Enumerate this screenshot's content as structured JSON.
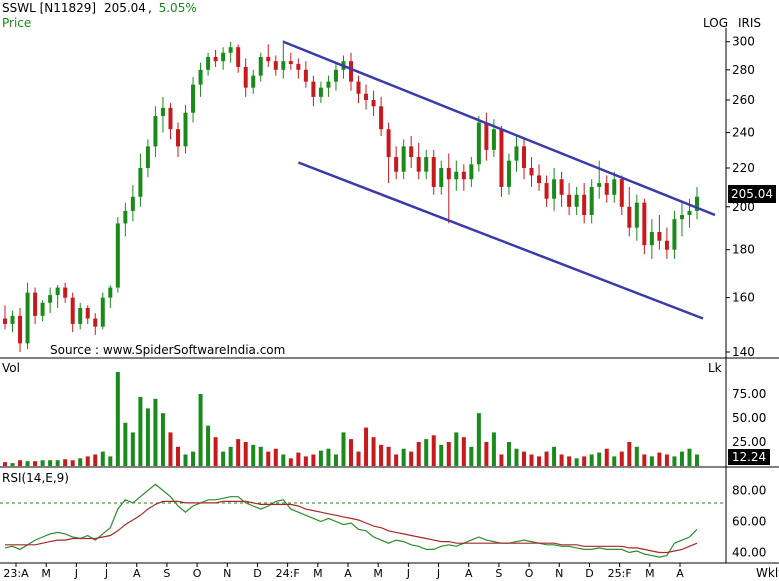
{
  "header": {
    "symbol": "SSWL [N11829]",
    "price": "205.04",
    "change": "5.05%",
    "price_label": "Price",
    "log_label": "LOG",
    "iris_label": "IRIS",
    "source": "Source : www.SpiderSoftwareIndia.com",
    "vol_label": "Vol",
    "vol_unit": "Lk",
    "rsi_label": "RSI(14,E,9)",
    "period_label": "Wkly",
    "price_badge": "205.04",
    "vol_badge": "12.24"
  },
  "colors": {
    "up": "#1a8a1a",
    "down": "#c8191c",
    "channel": "#3a3aa8",
    "rsi_line": "#2e8b2e",
    "rsi_signal": "#a52a2a",
    "badge": "#000000"
  },
  "chart_data": [
    {
      "type": "candlestick",
      "title": "SSWL [N11829]",
      "scale": "log",
      "ylim": [
        140,
        305
      ],
      "y_ticks": [
        140,
        160,
        180,
        200,
        220,
        240,
        260,
        280,
        300
      ],
      "x_ticks": [
        "23:A",
        "M",
        "J",
        "J",
        "A",
        "S",
        "O",
        "N",
        "D",
        "24:F",
        "M",
        "A",
        "M",
        "J",
        "J",
        "A",
        "S",
        "O",
        "N",
        "D",
        "25:F",
        "M",
        "A"
      ],
      "last_price": 205.04,
      "channel": {
        "upper": [
          {
            "x": 0,
            "y": 300
          },
          {
            "x": 89,
            "y": 198
          }
        ],
        "lower": [
          {
            "x": 0,
            "y": 223
          },
          {
            "x": 60,
            "y": 152
          }
        ],
        "upper_start_index": 37,
        "lower_start_index": 39
      },
      "series": [
        {
          "ohlc": [
            [
              152,
              157,
              148,
              150
            ],
            [
              150,
              155,
              147,
              153
            ],
            [
              153,
              156,
              140,
              143
            ],
            [
              143,
              166,
              141,
              162
            ],
            [
              162,
              164,
              150,
              153
            ],
            [
              153,
              159,
              151,
              158
            ],
            [
              158,
              164,
              154,
              161
            ],
            [
              161,
              165,
              156,
              164
            ],
            [
              164,
              166,
              158,
              160
            ],
            [
              160,
              162,
              147,
              150
            ],
            [
              150,
              158,
              148,
              156
            ],
            [
              156,
              157,
              150,
              152
            ],
            [
              152,
              154,
              146,
              149
            ],
            [
              149,
              162,
              148,
              160
            ],
            [
              160,
              165,
              156,
              164
            ],
            [
              164,
              195,
              162,
              192
            ],
            [
              192,
              202,
              186,
              198
            ],
            [
              198,
              211,
              193,
              205
            ],
            [
              205,
              228,
              200,
              220
            ],
            [
              220,
              236,
              215,
              232
            ],
            [
              232,
              256,
              226,
              250
            ],
            [
              250,
              262,
              240,
              255
            ],
            [
              255,
              258,
              236,
              242
            ],
            [
              242,
              246,
              226,
              232
            ],
            [
              232,
              257,
              228,
              252
            ],
            [
              252,
              275,
              246,
              270
            ],
            [
              270,
              285,
              262,
              280
            ],
            [
              280,
              292,
              276,
              289
            ],
            [
              289,
              294,
              282,
              286
            ],
            [
              286,
              296,
              280,
              292
            ],
            [
              292,
              300,
              285,
              296
            ],
            [
              296,
              298,
              278,
              282
            ],
            [
              282,
              288,
              262,
              268
            ],
            [
              268,
              280,
              264,
              276
            ],
            [
              276,
              292,
              272,
              289
            ],
            [
              289,
              298,
              282,
              286
            ],
            [
              286,
              290,
              276,
              280
            ],
            [
              280,
              301,
              274,
              286
            ],
            [
              286,
              292,
              280,
              284
            ],
            [
              284,
              288,
              274,
              280
            ],
            [
              280,
              286,
              268,
              272
            ],
            [
              272,
              276,
              256,
              262
            ],
            [
              262,
              272,
              258,
              268
            ],
            [
              268,
              276,
              262,
              272
            ],
            [
              272,
              284,
              266,
              280
            ],
            [
              280,
              290,
              274,
              286
            ],
            [
              286,
              292,
              266,
              272
            ],
            [
              272,
              276,
              258,
              264
            ],
            [
              264,
              270,
              254,
              260
            ],
            [
              260,
              266,
              250,
              256
            ],
            [
              256,
              262,
              238,
              242
            ],
            [
              242,
              246,
              212,
              226
            ],
            [
              226,
              232,
              214,
              218
            ],
            [
              218,
              236,
              214,
              232
            ],
            [
              232,
              238,
              220,
              226
            ],
            [
              226,
              234,
              214,
              218
            ],
            [
              218,
              230,
              214,
              226
            ],
            [
              226,
              230,
              206,
              210
            ],
            [
              210,
              224,
              206,
              220
            ],
            [
              220,
              228,
              192,
              214
            ],
            [
              214,
              224,
              208,
              218
            ],
            [
              218,
              222,
              208,
              214
            ],
            [
              214,
              226,
              210,
              222
            ],
            [
              222,
              250,
              218,
              246
            ],
            [
              246,
              252,
              224,
              230
            ],
            [
              230,
              248,
              226,
              242
            ],
            [
              242,
              244,
              205,
              210
            ],
            [
              210,
              228,
              206,
              224
            ],
            [
              224,
              238,
              218,
              232
            ],
            [
              232,
              236,
              214,
              220
            ],
            [
              220,
              226,
              210,
              216
            ],
            [
              216,
              222,
              208,
              212
            ],
            [
              212,
              216,
              200,
              204
            ],
            [
              204,
              220,
              198,
              214
            ],
            [
              214,
              218,
              200,
              206
            ],
            [
              206,
              212,
              196,
              200
            ],
            [
              200,
              210,
              196,
              206
            ],
            [
              206,
              212,
              192,
              196
            ],
            [
              196,
              214,
              192,
              210
            ],
            [
              210,
              224,
              204,
              212
            ],
            [
              212,
              216,
              202,
              206
            ],
            [
              206,
              218,
              202,
              214
            ],
            [
              214,
              216,
              196,
              200
            ],
            [
              200,
              210,
              186,
              190
            ],
            [
              190,
              206,
              184,
              202
            ],
            [
              202,
              204,
              178,
              182
            ],
            [
              182,
              194,
              176,
              188
            ],
            [
              188,
              196,
              180,
              184
            ],
            [
              184,
              190,
              176,
              180
            ],
            [
              180,
              198,
              176,
              194
            ],
            [
              194,
              202,
              186,
              196
            ],
            [
              196,
              204,
              190,
              198
            ],
            [
              198,
              210,
              194,
              205
            ]
          ]
        }
      ]
    },
    {
      "type": "bar",
      "title": "Vol",
      "unit": "Lk",
      "ylim": [
        0,
        100
      ],
      "y_ticks": [
        25,
        50,
        75
      ],
      "last_value": 12.24,
      "series": [
        {
          "values": [
            4,
            3,
            6,
            5,
            5,
            6,
            6,
            6,
            7,
            6,
            8,
            10,
            12,
            15,
            10,
            98,
            45,
            35,
            72,
            60,
            70,
            55,
            35,
            20,
            12,
            15,
            75,
            42,
            30,
            15,
            20,
            28,
            25,
            22,
            20,
            15,
            18,
            12,
            8,
            14,
            10,
            12,
            16,
            18,
            12,
            35,
            28,
            15,
            40,
            30,
            22,
            20,
            12,
            18,
            15,
            25,
            28,
            32,
            22,
            25,
            35,
            30,
            20,
            55,
            25,
            35,
            12,
            25,
            18,
            15,
            12,
            10,
            15,
            20,
            12,
            10,
            8,
            10,
            12,
            14,
            18,
            10,
            15,
            25,
            20,
            12,
            10,
            14,
            12,
            10,
            15,
            18,
            12
          ]
        }
      ]
    },
    {
      "type": "line",
      "title": "RSI(14,E,9)",
      "ylim": [
        30,
        90
      ],
      "y_ticks": [
        40,
        60,
        80
      ],
      "reference_line": 70,
      "series": [
        {
          "name": "RSI",
          "values": [
            43,
            44,
            42,
            45,
            48,
            50,
            52,
            53,
            52,
            50,
            49,
            51,
            48,
            52,
            56,
            68,
            74,
            72,
            76,
            80,
            84,
            80,
            76,
            70,
            66,
            70,
            72,
            74,
            74,
            75,
            76,
            76,
            72,
            70,
            68,
            70,
            73,
            74,
            68,
            66,
            64,
            62,
            60,
            62,
            60,
            58,
            59,
            55,
            54,
            50,
            48,
            46,
            48,
            47,
            45,
            44,
            42,
            42,
            44,
            45,
            44,
            46,
            48,
            50,
            48,
            47,
            46,
            46,
            47,
            48,
            47,
            46,
            45,
            45,
            44,
            44,
            43,
            42,
            42,
            43,
            42,
            42,
            42,
            40,
            41,
            39,
            38,
            37,
            38,
            46,
            48,
            50,
            55
          ]
        },
        {
          "name": "Signal",
          "values": [
            45,
            45,
            45,
            45,
            45,
            46,
            47,
            48,
            48,
            49,
            49,
            49,
            49,
            50,
            51,
            54,
            58,
            61,
            64,
            68,
            71,
            73,
            73,
            73,
            72,
            72,
            72,
            72,
            72,
            73,
            73,
            73,
            73,
            72,
            71,
            71,
            71,
            71,
            71,
            70,
            68,
            67,
            66,
            65,
            64,
            63,
            62,
            61,
            59,
            57,
            56,
            54,
            53,
            52,
            51,
            50,
            49,
            48,
            47,
            47,
            46,
            46,
            46,
            46,
            46,
            46,
            46,
            46,
            46,
            46,
            46,
            46,
            46,
            46,
            45,
            45,
            45,
            44,
            44,
            44,
            44,
            44,
            44,
            43,
            43,
            42,
            41,
            40,
            40,
            41,
            42,
            44,
            46
          ]
        }
      ]
    }
  ]
}
